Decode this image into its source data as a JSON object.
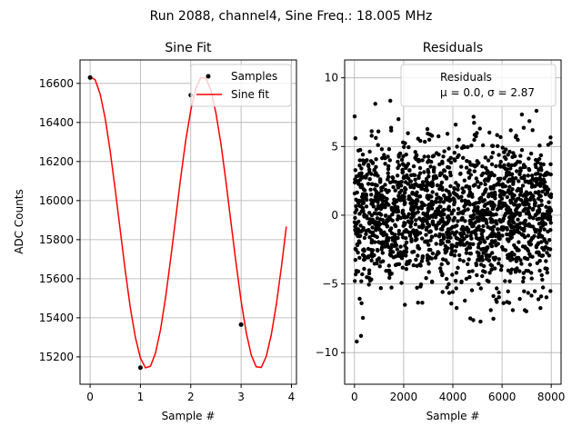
{
  "figure": {
    "suptitle": "Run 2088, channel4, Sine Freq.: 18.005 MHz"
  },
  "chart_data": [
    {
      "type": "line",
      "title": "Sine Fit",
      "xlabel": "Sample #",
      "ylabel": "ADC Counts",
      "xlim": [
        -0.2,
        4.1
      ],
      "ylim": [
        15060,
        16720
      ],
      "xticks": [
        0,
        1,
        2,
        3,
        4
      ],
      "yticks": [
        15200,
        15400,
        15600,
        15800,
        16000,
        16200,
        16400,
        16600
      ],
      "grid": true,
      "legend": {
        "placement": "top-right",
        "entries": [
          "Samples",
          "Sine fit"
        ]
      },
      "series": [
        {
          "name": "Samples",
          "kind": "scatter",
          "color": "#000000",
          "x": [
            0,
            1,
            2,
            3
          ],
          "y": [
            16630,
            15145,
            16540,
            15365
          ]
        },
        {
          "name": "Sine fit",
          "kind": "line",
          "color": "#ff0000",
          "fit": {
            "offset": 15888,
            "amplitude": 748,
            "period_samples": 2.22,
            "phase_rad": 1.5,
            "x_start": 0,
            "x_end": 3.9,
            "step": 0.1
          }
        }
      ]
    },
    {
      "type": "scatter",
      "title": "Residuals",
      "xlabel": "Sample #",
      "ylabel": "",
      "xlim": [
        -400,
        8400
      ],
      "ylim": [
        -12.3,
        11.3
      ],
      "xticks": [
        0,
        2000,
        4000,
        6000,
        8000
      ],
      "yticks": [
        -10,
        -5,
        0,
        5,
        10
      ],
      "grid": true,
      "legend": {
        "placement": "top-right",
        "entries": [
          "Residuals",
          "μ = 0.0, σ = 2.87"
        ]
      },
      "series": [
        {
          "name": "Residuals",
          "color": "#000000",
          "n_points": 8000,
          "x_range": [
            0,
            8000
          ],
          "mean": 0.0,
          "std": 2.87,
          "min": -11.4,
          "max": 10.3
        }
      ]
    }
  ]
}
